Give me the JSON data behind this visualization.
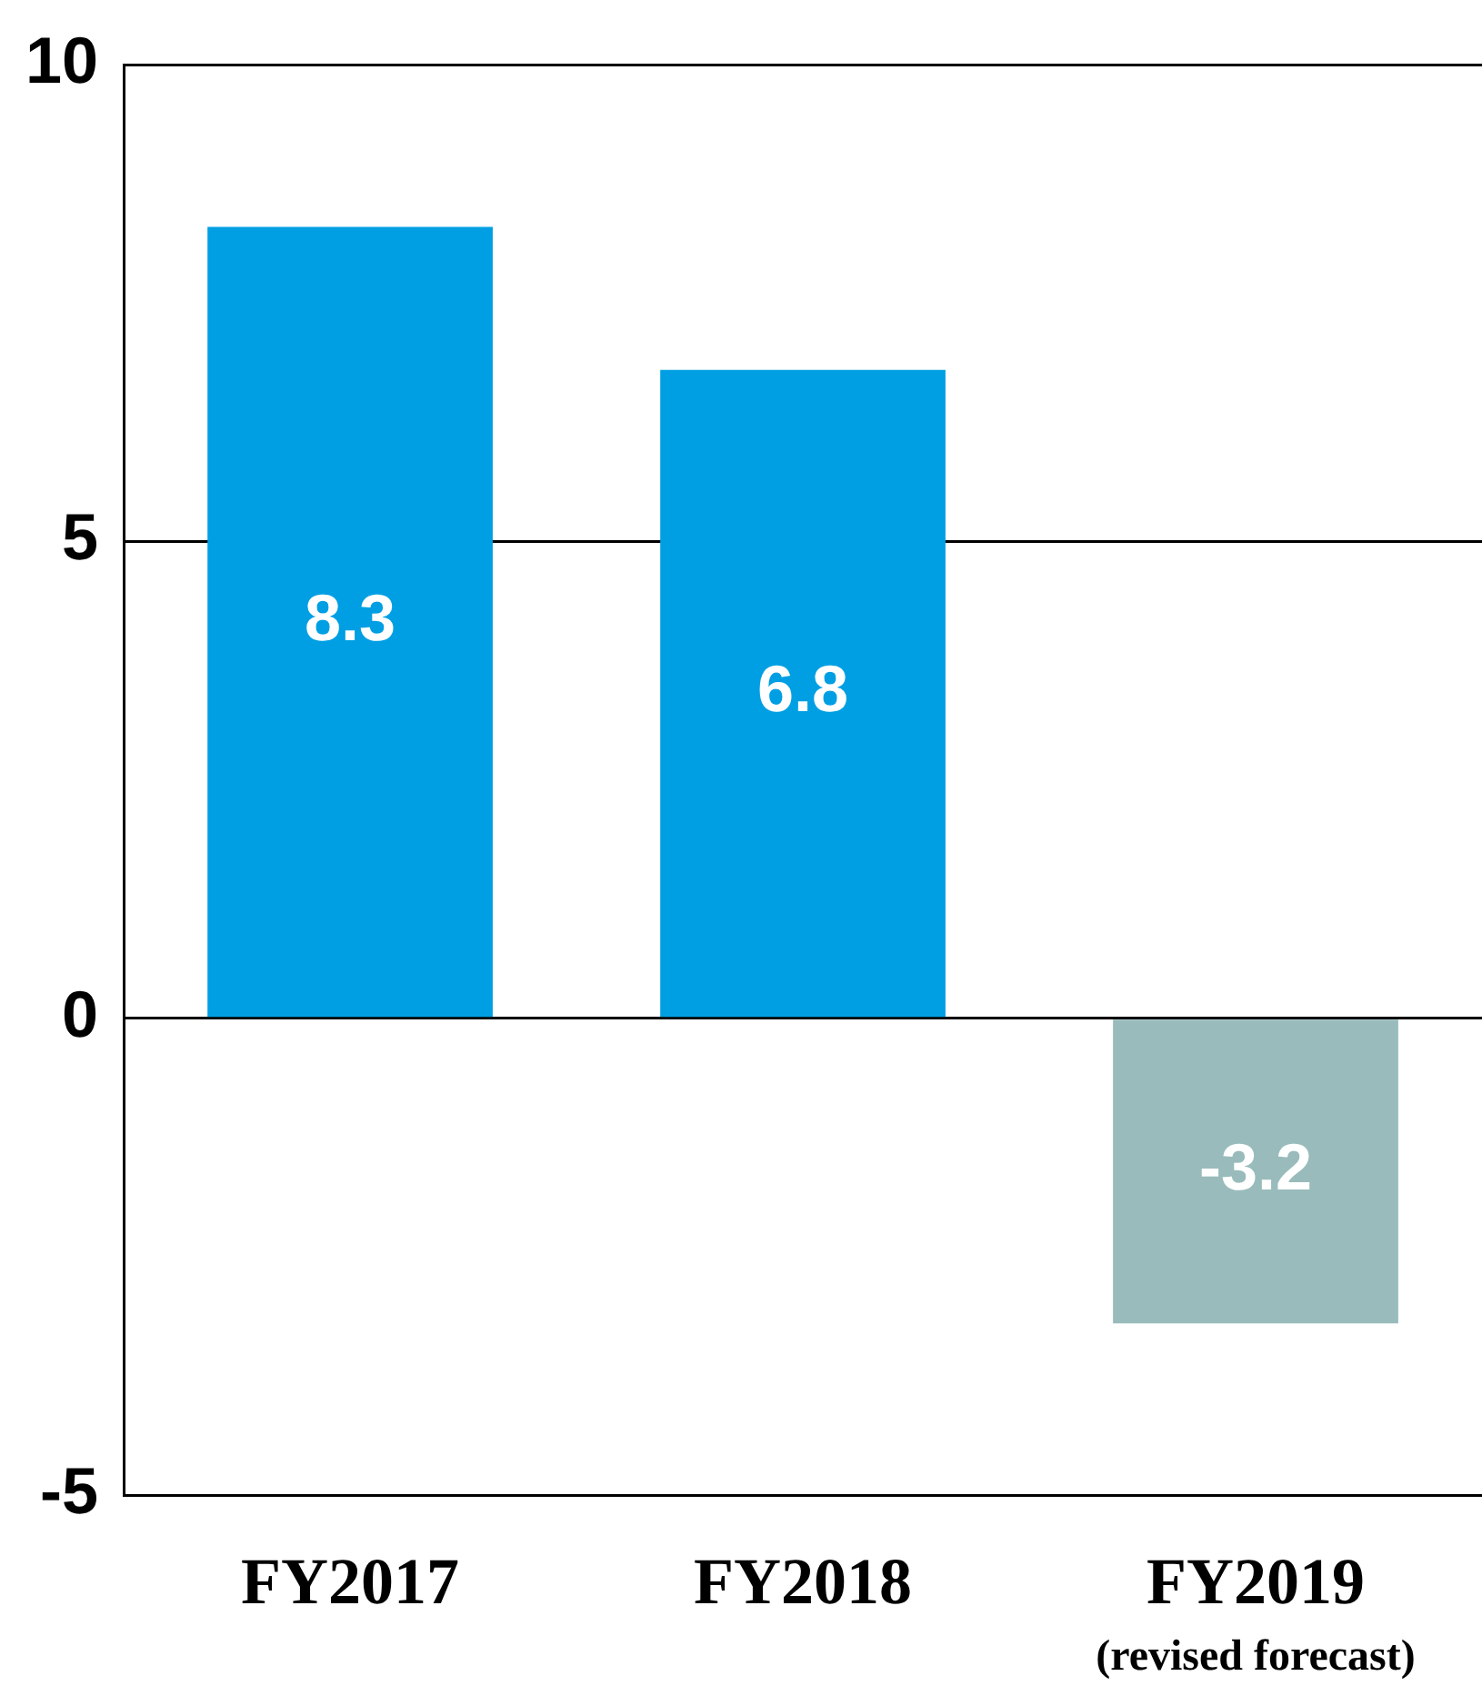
{
  "chart_data": {
    "type": "bar",
    "categories": [
      "FY2017",
      "FY2018",
      "FY2019\n(revised forecast)"
    ],
    "values": [
      8.3,
      6.8,
      -3.2
    ],
    "colors": [
      "#009fe3",
      "#009fe3",
      "#99bbbb"
    ],
    "ylim": [
      -5,
      10
    ],
    "yticks": [
      -5,
      0,
      5,
      10
    ],
    "grid": "y",
    "legend": false,
    "data_labels": true
  }
}
